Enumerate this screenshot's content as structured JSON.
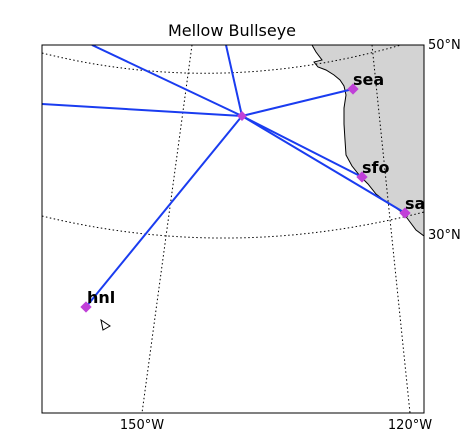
{
  "title": "Mellow Bullseye",
  "colors": {
    "route": "#1a3cf0",
    "marker": "#c040d8",
    "land": "#d3d3d3",
    "coast": "#000000",
    "graticule": "#000000"
  },
  "graticule_labels": {
    "lat": [
      "50°N",
      "30°N"
    ],
    "lon": [
      "150°W",
      "120°W"
    ]
  },
  "hub": {
    "lat": 42,
    "lon": -139
  },
  "cities": [
    {
      "code": "sea",
      "lat": 47.45,
      "lon": -122.3
    },
    {
      "code": "sfo",
      "lat": 37.62,
      "lon": -122.38
    },
    {
      "code": "san",
      "lat": 32.73,
      "lon": -117.19
    },
    {
      "code": "hnl",
      "lat": 21.32,
      "lon": -157.92
    }
  ],
  "offmap_routes": [
    {
      "toward": "northwest"
    },
    {
      "toward": "north"
    },
    {
      "toward": "west"
    }
  ]
}
